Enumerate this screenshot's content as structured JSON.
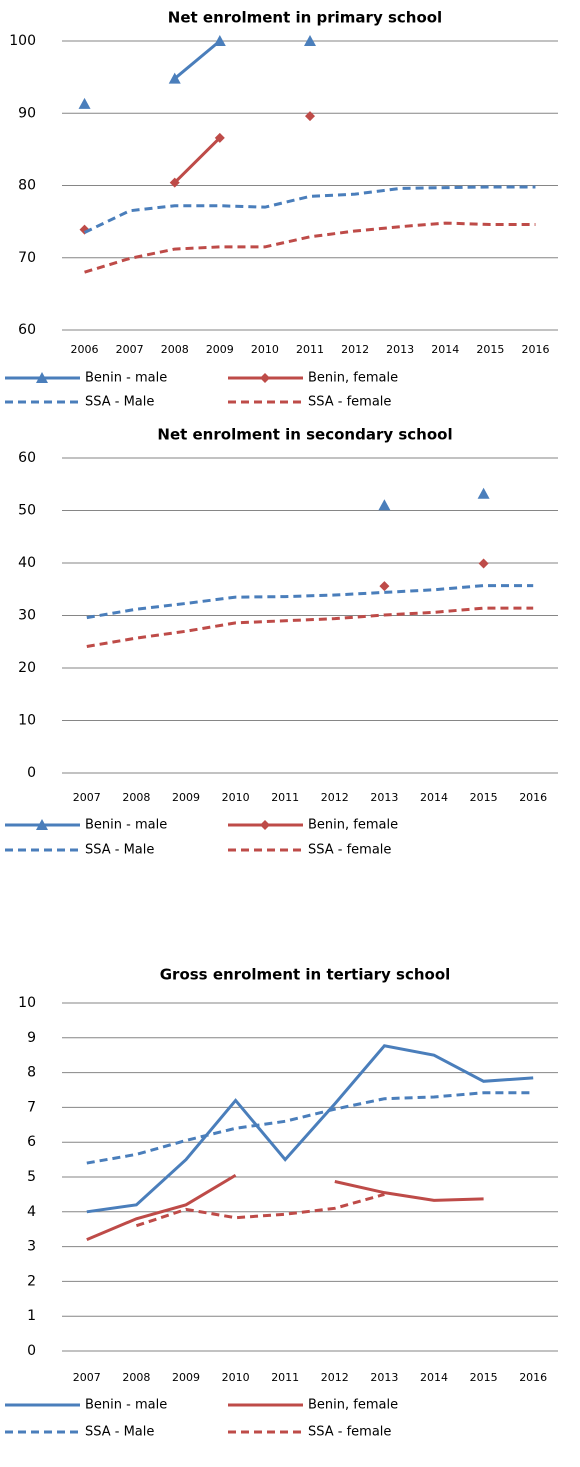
{
  "chart_data": [
    {
      "type": "line",
      "title": "Net enrolment in primary school",
      "categories": [
        "2006",
        "2007",
        "2008",
        "2009",
        "2010",
        "2011",
        "2012",
        "2013",
        "2014",
        "2015",
        "2016"
      ],
      "ylim": [
        60,
        100
      ],
      "yticks": [
        60,
        70,
        80,
        90,
        100
      ],
      "grid": true,
      "series": [
        {
          "name": "Benin - male",
          "color": "#4a7ebb",
          "marker": "triangle",
          "values": [
            91.3,
            null,
            94.8,
            100,
            null,
            100,
            null,
            null,
            null,
            null,
            null
          ]
        },
        {
          "name": "Benin, female",
          "color": "#be4b48",
          "marker": "diamond",
          "values": [
            73.9,
            null,
            80.4,
            86.6,
            null,
            89.6,
            null,
            null,
            null,
            null,
            null
          ]
        },
        {
          "name": "SSA - Male",
          "color": "#4a7ebb",
          "dash": true,
          "values": [
            73.5,
            76.5,
            77.2,
            77.2,
            77.0,
            78.5,
            78.8,
            79.6,
            79.7,
            79.8,
            79.8
          ]
        },
        {
          "name": "SSA - female",
          "color": "#be4b48",
          "dash": true,
          "values": [
            68.0,
            69.9,
            71.2,
            71.5,
            71.5,
            72.9,
            73.7,
            74.3,
            74.8,
            74.6,
            74.6
          ]
        }
      ]
    },
    {
      "type": "line",
      "title": "Net enrolment in secondary school",
      "categories": [
        "2007",
        "2008",
        "2009",
        "2010",
        "2011",
        "2012",
        "2013",
        "2014",
        "2015",
        "2016"
      ],
      "ylim": [
        0,
        60
      ],
      "yticks": [
        0,
        10,
        20,
        30,
        40,
        50,
        60
      ],
      "grid": true,
      "series": [
        {
          "name": "Benin - male",
          "color": "#4a7ebb",
          "marker": "triangle",
          "values": [
            null,
            null,
            null,
            null,
            null,
            null,
            51.0,
            null,
            53.2,
            null
          ]
        },
        {
          "name": "Benin, female",
          "color": "#be4b48",
          "marker": "diamond",
          "values": [
            null,
            null,
            null,
            null,
            null,
            null,
            35.6,
            null,
            39.9,
            null
          ]
        },
        {
          "name": "SSA - Male",
          "color": "#4a7ebb",
          "dash": true,
          "values": [
            29.6,
            31.2,
            32.3,
            33.5,
            33.6,
            33.9,
            34.4,
            34.9,
            35.7,
            35.7
          ]
        },
        {
          "name": "SSA - female",
          "color": "#be4b48",
          "dash": true,
          "values": [
            24.1,
            25.7,
            27.0,
            28.6,
            29.0,
            29.4,
            30.1,
            30.6,
            31.4,
            31.4
          ]
        }
      ]
    },
    {
      "type": "line",
      "title": "Gross enrolment in tertiary school",
      "categories": [
        "2007",
        "2008",
        "2009",
        "2010",
        "2011",
        "2012",
        "2013",
        "2014",
        "2015",
        "2016"
      ],
      "ylim": [
        0,
        10
      ],
      "yticks": [
        0,
        1,
        2,
        3,
        4,
        5,
        6,
        7,
        8,
        9,
        10
      ],
      "grid": true,
      "series": [
        {
          "name": "Benin - male",
          "color": "#4a7ebb",
          "values": [
            4.0,
            4.2,
            5.5,
            7.2,
            5.5,
            7.1,
            8.77,
            8.5,
            7.75,
            7.85
          ]
        },
        {
          "name": "Benin, female",
          "color": "#be4b48",
          "values": [
            3.2,
            3.8,
            4.2,
            5.05,
            null,
            4.87,
            4.55,
            4.33,
            4.37,
            null
          ]
        },
        {
          "name": "SSA - Male",
          "color": "#4a7ebb",
          "dash": true,
          "values": [
            5.4,
            5.65,
            6.05,
            6.4,
            6.6,
            6.95,
            7.25,
            7.3,
            7.42,
            7.42
          ]
        },
        {
          "name": "SSA - female",
          "color": "#be4b48",
          "dash": true,
          "values": [
            null,
            3.6,
            4.07,
            3.83,
            3.93,
            4.1,
            4.5,
            null,
            null,
            null
          ]
        }
      ]
    }
  ]
}
